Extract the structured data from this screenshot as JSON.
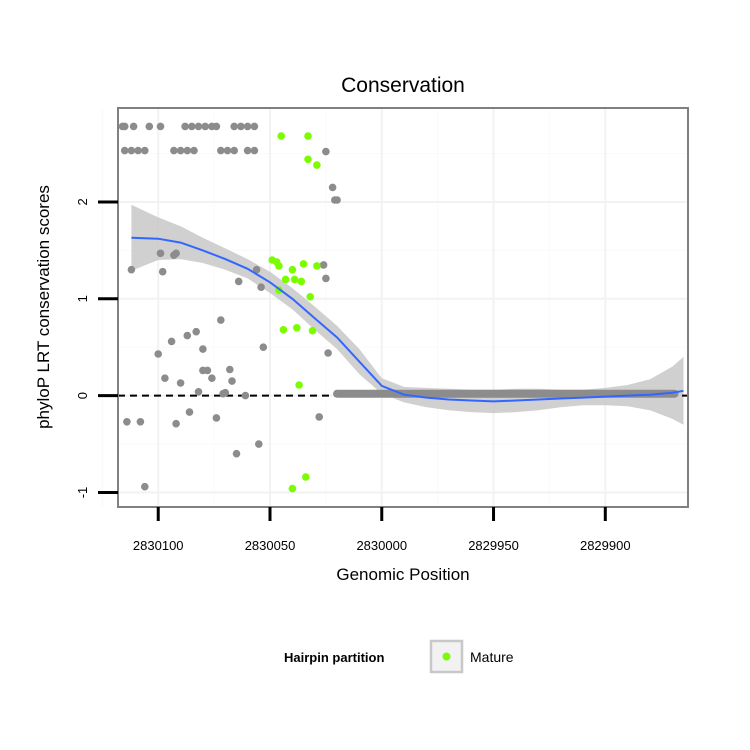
{
  "chart_data": {
    "type": "scatter",
    "title": "Conservation",
    "xlabel": "Genomic Position",
    "ylabel": "phyloP LRT conservation scores",
    "xlim": [
      2830118,
      2829863
    ],
    "x_reversed": true,
    "ylim": [
      -1.15,
      2.97
    ],
    "x_ticks": [
      2830100,
      2830050,
      2830000,
      2829950,
      2829900
    ],
    "x_tick_labels": [
      "2830100",
      "2830050",
      "2830000",
      "2829950",
      "2829900"
    ],
    "y_ticks": [
      -1,
      0,
      1,
      2
    ],
    "y_tick_labels": [
      "-1",
      "0",
      "1",
      "2"
    ],
    "grid": true,
    "reference_line": {
      "y": 0,
      "style": "dashed",
      "color": "#000000"
    },
    "legend": {
      "title": "Hairpin partition",
      "position": "bottom",
      "entries": [
        {
          "label": "Mature",
          "color": "#7cfc00"
        }
      ]
    },
    "colors": {
      "other": "#8c8c8c",
      "mature": "#7cfc00",
      "smooth_line": "#3366ff",
      "ribbon": "#c8c8c8"
    },
    "series": [
      {
        "name": "Other",
        "color": "#8c8c8c",
        "points": [
          [
            2830116,
            2.78
          ],
          [
            2830115,
            2.78
          ],
          [
            2830111,
            2.78
          ],
          [
            2830104,
            2.78
          ],
          [
            2830099,
            2.78
          ],
          [
            2830088,
            2.78
          ],
          [
            2830085,
            2.78
          ],
          [
            2830082,
            2.78
          ],
          [
            2830079,
            2.78
          ],
          [
            2830076,
            2.78
          ],
          [
            2830074,
            2.78
          ],
          [
            2830066,
            2.78
          ],
          [
            2830063,
            2.78
          ],
          [
            2830060,
            2.78
          ],
          [
            2830057,
            2.78
          ],
          [
            2830115,
            2.53
          ],
          [
            2830112,
            2.53
          ],
          [
            2830109,
            2.53
          ],
          [
            2830106,
            2.53
          ],
          [
            2830093,
            2.53
          ],
          [
            2830090,
            2.53
          ],
          [
            2830087,
            2.53
          ],
          [
            2830084,
            2.53
          ],
          [
            2830072,
            2.53
          ],
          [
            2830069,
            2.53
          ],
          [
            2830066,
            2.53
          ],
          [
            2830060,
            2.53
          ],
          [
            2830057,
            2.53
          ],
          [
            2830025,
            2.52
          ],
          [
            2830022,
            2.15
          ],
          [
            2830021,
            2.02
          ],
          [
            2830020,
            2.02
          ],
          [
            2830112,
            1.3
          ],
          [
            2830099,
            1.47
          ],
          [
            2830098,
            1.28
          ],
          [
            2830093,
            1.45
          ],
          [
            2830092,
            1.47
          ],
          [
            2830100,
            0.43
          ],
          [
            2830097,
            0.18
          ],
          [
            2830094,
            0.56
          ],
          [
            2830090,
            0.13
          ],
          [
            2830087,
            0.62
          ],
          [
            2830083,
            0.66
          ],
          [
            2830080,
            0.48
          ],
          [
            2830080,
            0.26
          ],
          [
            2830078,
            0.26
          ],
          [
            2830076,
            0.18
          ],
          [
            2830072,
            0.78
          ],
          [
            2830070,
            0.03
          ],
          [
            2830068,
            0.27
          ],
          [
            2830067,
            0.15
          ],
          [
            2830082,
            0.04
          ],
          [
            2830064,
            1.18
          ],
          [
            2830061,
            0.0
          ],
          [
            2830056,
            1.3
          ],
          [
            2830054,
            1.12
          ],
          [
            2830053,
            0.5
          ],
          [
            2830026,
            1.35
          ],
          [
            2830025,
            1.21
          ],
          [
            2830024,
            0.44
          ],
          [
            2830114,
            -0.27
          ],
          [
            2830108,
            -0.27
          ],
          [
            2830092,
            -0.29
          ],
          [
            2830086,
            -0.17
          ],
          [
            2830074,
            -0.23
          ],
          [
            2830071,
            0.02
          ],
          [
            2830065,
            -0.6
          ],
          [
            2830055,
            -0.5
          ],
          [
            2830028,
            -0.22
          ],
          [
            2830106,
            -0.94
          ]
        ],
        "flat_segment": {
          "x_from": 2830020,
          "x_to": 2829869,
          "y": 0.02
        }
      },
      {
        "name": "Mature",
        "color": "#7cfc00",
        "points": [
          [
            2830045,
            2.68
          ],
          [
            2830033,
            2.68
          ],
          [
            2830033,
            2.44
          ],
          [
            2830029,
            2.38
          ],
          [
            2830049,
            1.4
          ],
          [
            2830047,
            1.38
          ],
          [
            2830046,
            1.34
          ],
          [
            2830040,
            1.3
          ],
          [
            2830035,
            1.36
          ],
          [
            2830029,
            1.34
          ],
          [
            2830043,
            1.2
          ],
          [
            2830039,
            1.2
          ],
          [
            2830036,
            1.18
          ],
          [
            2830046,
            1.09
          ],
          [
            2830032,
            1.02
          ],
          [
            2830044,
            0.68
          ],
          [
            2830038,
            0.7
          ],
          [
            2830031,
            0.67
          ],
          [
            2830037,
            0.11
          ],
          [
            2830040,
            -0.96
          ],
          [
            2830034,
            -0.84
          ]
        ]
      }
    ],
    "smooth": {
      "method": "loess",
      "x": [
        2830112,
        2830100,
        2830090,
        2830080,
        2830070,
        2830060,
        2830050,
        2830040,
        2830030,
        2830020,
        2830010,
        2830000,
        2829990,
        2829980,
        2829970,
        2829960,
        2829950,
        2829940,
        2829930,
        2829920,
        2829910,
        2829900,
        2829890,
        2829880,
        2829870,
        2829865
      ],
      "y": [
        1.63,
        1.62,
        1.58,
        1.5,
        1.41,
        1.31,
        1.17,
        1.0,
        0.8,
        0.6,
        0.35,
        0.1,
        0.01,
        -0.02,
        -0.04,
        -0.05,
        -0.06,
        -0.05,
        -0.04,
        -0.03,
        -0.02,
        -0.01,
        0.0,
        0.01,
        0.03,
        0.05
      ],
      "lower": [
        1.29,
        1.4,
        1.41,
        1.37,
        1.3,
        1.21,
        1.06,
        0.89,
        0.68,
        0.48,
        0.22,
        0.02,
        -0.07,
        -0.12,
        -0.15,
        -0.17,
        -0.18,
        -0.17,
        -0.15,
        -0.12,
        -0.1,
        -0.1,
        -0.11,
        -0.15,
        -0.24,
        -0.3
      ],
      "upper": [
        1.97,
        1.84,
        1.75,
        1.63,
        1.52,
        1.41,
        1.28,
        1.11,
        0.92,
        0.72,
        0.48,
        0.18,
        0.09,
        0.08,
        0.07,
        0.06,
        0.06,
        0.07,
        0.07,
        0.06,
        0.06,
        0.08,
        0.11,
        0.17,
        0.3,
        0.4
      ]
    }
  }
}
